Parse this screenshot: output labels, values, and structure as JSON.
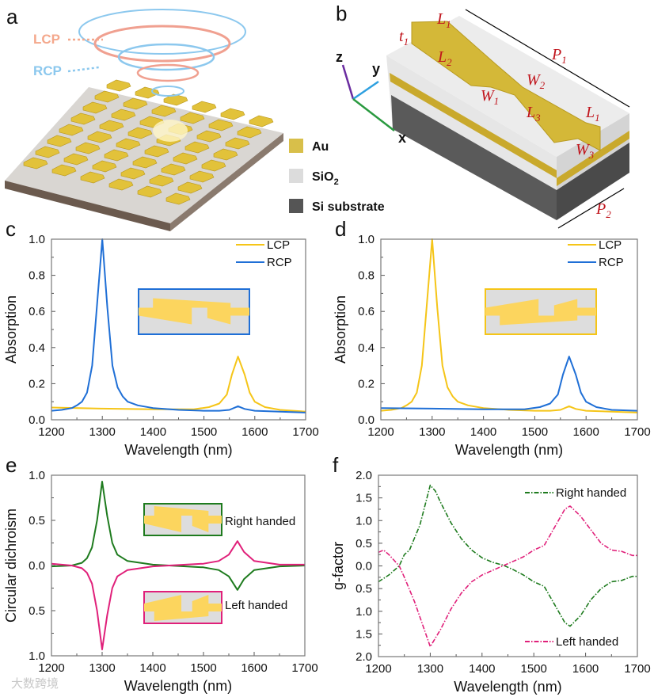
{
  "panels": {
    "a": {
      "label": "a",
      "lcp": "LCP",
      "rcp": "RCP",
      "legend": [
        {
          "name": "Au",
          "color": "#d8bf4a"
        },
        {
          "name": "SiO",
          "sub": "2",
          "color": "#dcdcdc"
        },
        {
          "name": "Si substrate",
          "color": "#555555"
        }
      ]
    },
    "b": {
      "label": "b",
      "axes": {
        "z": "z",
        "y": "y",
        "x": "x"
      },
      "dims": [
        {
          "t": "L",
          "s": "1"
        },
        {
          "t": "t",
          "s": "1"
        },
        {
          "t": "L",
          "s": "2"
        },
        {
          "t": "P",
          "s": "1"
        },
        {
          "t": "W",
          "s": "2"
        },
        {
          "t": "W",
          "s": "1"
        },
        {
          "t": "L",
          "s": "3"
        },
        {
          "t": "L",
          "s": "1"
        },
        {
          "t": "W",
          "s": "3"
        },
        {
          "t": "P",
          "s": "2"
        }
      ]
    }
  },
  "watermark": "大数跨境",
  "colors": {
    "lcp": "#f5c518",
    "rcp": "#1f6fd6",
    "right": "#1e7b1e",
    "left": "#e0207a",
    "inset_fill": "#dddddd",
    "inset_metal": "#fcd55e"
  },
  "chart_data": [
    {
      "id": "c",
      "panel_label": "c",
      "type": "line",
      "xlabel": "Wavelength (nm)",
      "ylabel": "Absorption",
      "xlim": [
        1200,
        1700
      ],
      "ylim": [
        0,
        1.0
      ],
      "xticks": [
        "1200",
        "1300",
        "1400",
        "1500",
        "1600",
        "1700"
      ],
      "yticks": [
        "0.0",
        "0.2",
        "0.4",
        "0.6",
        "0.8",
        "1.0"
      ],
      "legend": "top-right",
      "inset_border": "rcp",
      "series": [
        {
          "name": "LCP",
          "color": "#f5c518",
          "style": "solid",
          "x": [
            1200,
            1300,
            1400,
            1480,
            1510,
            1530,
            1545,
            1555,
            1567,
            1580,
            1590,
            1600,
            1620,
            1650,
            1700
          ],
          "y": [
            0.068,
            0.062,
            0.058,
            0.058,
            0.07,
            0.09,
            0.14,
            0.25,
            0.35,
            0.25,
            0.15,
            0.1,
            0.07,
            0.055,
            0.045
          ]
        },
        {
          "name": "RCP",
          "color": "#1f6fd6",
          "style": "solid",
          "x": [
            1200,
            1220,
            1240,
            1250,
            1260,
            1270,
            1280,
            1290,
            1300,
            1310,
            1320,
            1330,
            1340,
            1350,
            1370,
            1400,
            1450,
            1500,
            1530,
            1550,
            1567,
            1580,
            1600,
            1650,
            1700
          ],
          "y": [
            0.05,
            0.055,
            0.065,
            0.08,
            0.1,
            0.15,
            0.3,
            0.65,
            1.0,
            0.62,
            0.3,
            0.18,
            0.13,
            0.1,
            0.08,
            0.065,
            0.055,
            0.05,
            0.05,
            0.055,
            0.075,
            0.06,
            0.05,
            0.045,
            0.04
          ]
        }
      ]
    },
    {
      "id": "d",
      "panel_label": "d",
      "type": "line",
      "xlabel": "Wavelength (nm)",
      "ylabel": "Absorption",
      "xlim": [
        1200,
        1700
      ],
      "ylim": [
        0,
        1.0
      ],
      "xticks": [
        "1200",
        "1300",
        "1400",
        "1500",
        "1600",
        "1700"
      ],
      "yticks": [
        "0.0",
        "0.2",
        "0.4",
        "0.6",
        "0.8",
        "1.0"
      ],
      "legend": "top-right",
      "inset_border": "lcp",
      "series": [
        {
          "name": "LCP",
          "color": "#f5c518",
          "style": "solid",
          "x": [
            1200,
            1220,
            1240,
            1250,
            1260,
            1270,
            1280,
            1290,
            1300,
            1310,
            1320,
            1330,
            1340,
            1350,
            1370,
            1400,
            1450,
            1500,
            1530,
            1550,
            1567,
            1580,
            1600,
            1650,
            1700
          ],
          "y": [
            0.05,
            0.055,
            0.065,
            0.08,
            0.1,
            0.15,
            0.3,
            0.65,
            1.0,
            0.62,
            0.3,
            0.18,
            0.13,
            0.1,
            0.08,
            0.065,
            0.055,
            0.05,
            0.05,
            0.055,
            0.075,
            0.06,
            0.05,
            0.045,
            0.04
          ]
        },
        {
          "name": "RCP",
          "color": "#1f6fd6",
          "style": "solid",
          "x": [
            1200,
            1300,
            1400,
            1480,
            1510,
            1530,
            1545,
            1555,
            1567,
            1580,
            1590,
            1600,
            1620,
            1650,
            1700
          ],
          "y": [
            0.065,
            0.062,
            0.058,
            0.058,
            0.07,
            0.09,
            0.14,
            0.25,
            0.35,
            0.25,
            0.15,
            0.1,
            0.07,
            0.055,
            0.05
          ]
        }
      ]
    },
    {
      "id": "e",
      "panel_label": "e",
      "type": "line",
      "xlabel": "Wavelength (nm)",
      "ylabel": "Circular dichroism",
      "xlim": [
        1200,
        1700
      ],
      "ylim": [
        -1.0,
        1.0
      ],
      "xticks": [
        "1200",
        "1300",
        "1400",
        "1500",
        "1600",
        "1700"
      ],
      "yticks": [
        "1.0",
        "0.5",
        "0.0",
        "0.5",
        "1.0"
      ],
      "legend": "inline-insets",
      "series": [
        {
          "name": "Right handed",
          "color": "#1e7b1e",
          "style": "solid",
          "x": [
            1200,
            1240,
            1260,
            1270,
            1280,
            1290,
            1300,
            1310,
            1320,
            1330,
            1350,
            1400,
            1500,
            1530,
            1550,
            1567,
            1580,
            1600,
            1650,
            1700
          ],
          "y": [
            -0.01,
            0,
            0.03,
            0.08,
            0.2,
            0.5,
            0.93,
            0.55,
            0.25,
            0.12,
            0.05,
            0.01,
            -0.02,
            -0.05,
            -0.12,
            -0.27,
            -0.15,
            -0.05,
            -0.01,
            0
          ]
        },
        {
          "name": "Left handed",
          "color": "#e0207a",
          "style": "solid",
          "x": [
            1200,
            1240,
            1260,
            1270,
            1280,
            1290,
            1300,
            1310,
            1320,
            1330,
            1350,
            1400,
            1500,
            1530,
            1550,
            1567,
            1580,
            1600,
            1650,
            1700
          ],
          "y": [
            0.02,
            0,
            -0.03,
            -0.08,
            -0.2,
            -0.5,
            -0.93,
            -0.55,
            -0.25,
            -0.12,
            -0.05,
            -0.01,
            0.02,
            0.05,
            0.12,
            0.27,
            0.15,
            0.05,
            0.01,
            0.01
          ]
        }
      ]
    },
    {
      "id": "f",
      "panel_label": "f",
      "type": "line",
      "xlabel": "Wavelength (nm)",
      "ylabel": "g-factor",
      "xlim": [
        1200,
        1700
      ],
      "ylim": [
        -2.0,
        2.0
      ],
      "xticks": [
        "1200",
        "1300",
        "1400",
        "1500",
        "1600",
        "1700"
      ],
      "yticks": [
        "2.0",
        "1.5",
        "1.0",
        "0.5",
        "0.0",
        "0.5",
        "1.0",
        "1.5",
        "2.0"
      ],
      "legend": "top-right / bottom-right",
      "series": [
        {
          "name": "Right handed",
          "color": "#1e7b1e",
          "style": "dashdot",
          "x": [
            1200,
            1220,
            1240,
            1250,
            1260,
            1280,
            1300,
            1310,
            1320,
            1340,
            1360,
            1380,
            1400,
            1420,
            1440,
            1460,
            1480,
            1500,
            1520,
            1540,
            1560,
            1570,
            1590,
            1610,
            1630,
            1650,
            1670,
            1690,
            1700
          ],
          "y": [
            -0.35,
            -0.2,
            0,
            0.25,
            0.35,
            0.9,
            1.78,
            1.65,
            1.4,
            0.95,
            0.6,
            0.35,
            0.18,
            0.08,
            0.02,
            -0.08,
            -0.2,
            -0.35,
            -0.45,
            -0.85,
            -1.25,
            -1.33,
            -1.1,
            -0.75,
            -0.5,
            -0.35,
            -0.32,
            -0.23,
            -0.23
          ]
        },
        {
          "name": "Left handed",
          "color": "#e0207a",
          "style": "dashdot",
          "x": [
            1200,
            1210,
            1220,
            1240,
            1250,
            1270,
            1300,
            1320,
            1340,
            1360,
            1380,
            1400,
            1420,
            1440,
            1460,
            1480,
            1500,
            1520,
            1540,
            1560,
            1570,
            1590,
            1610,
            1630,
            1650,
            1670,
            1690,
            1700
          ],
          "y": [
            0.3,
            0.35,
            0.25,
            0,
            -0.25,
            -0.8,
            -1.78,
            -1.4,
            -0.95,
            -0.6,
            -0.35,
            -0.2,
            -0.1,
            0,
            0.1,
            0.2,
            0.35,
            0.45,
            0.85,
            1.25,
            1.32,
            1.1,
            0.8,
            0.5,
            0.35,
            0.32,
            0.23,
            0.23
          ]
        }
      ]
    }
  ]
}
